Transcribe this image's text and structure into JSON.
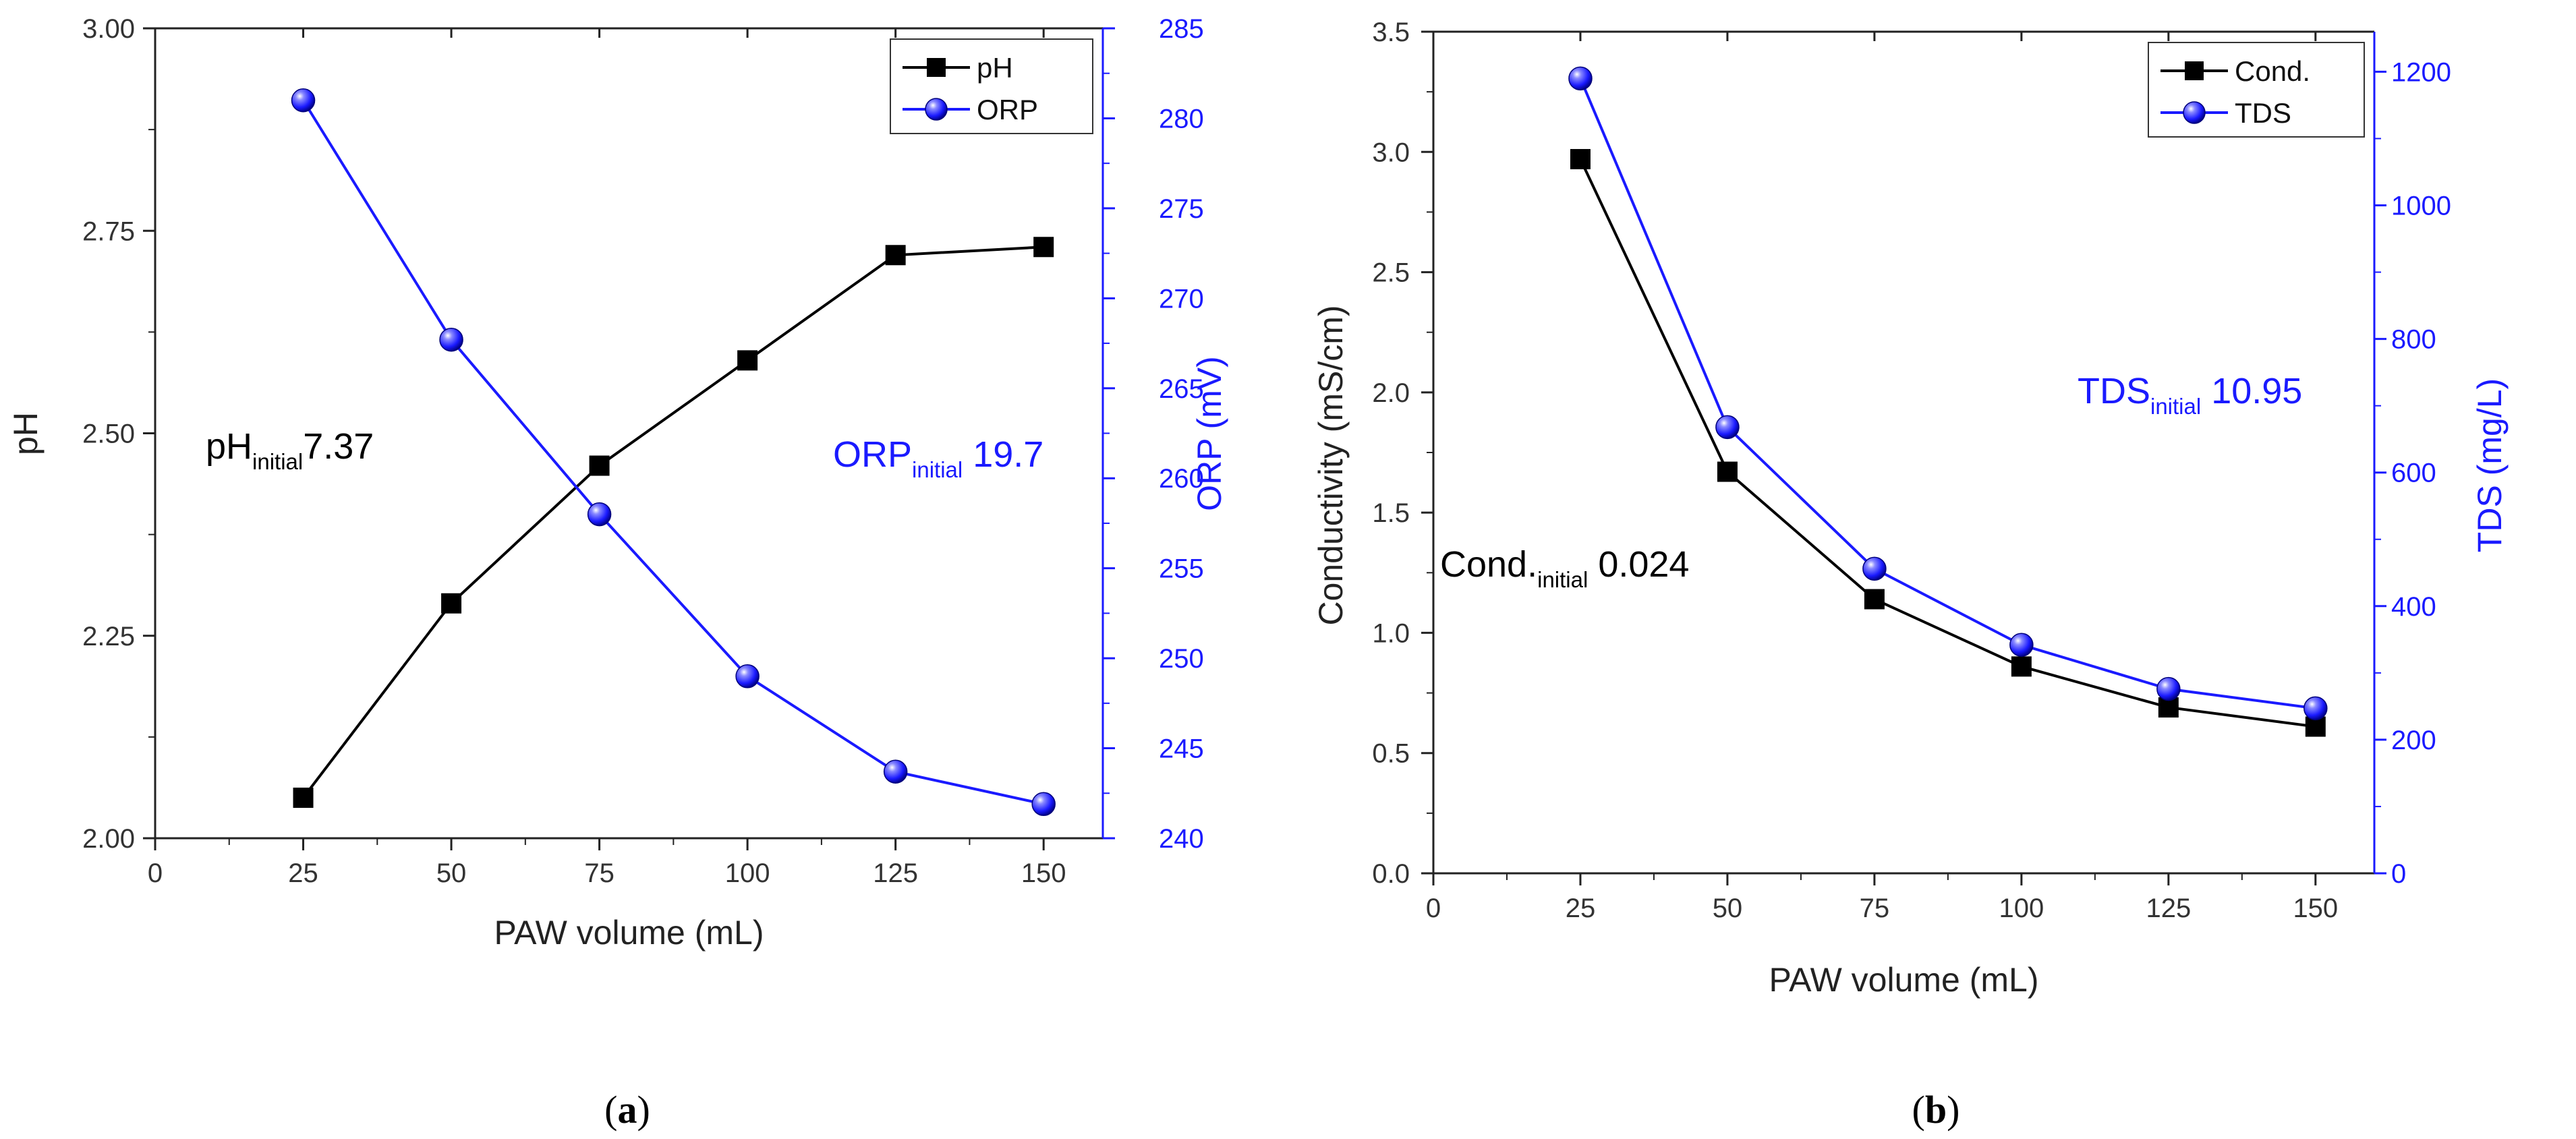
{
  "colors": {
    "black_series": "#000000",
    "blue_series": "#1a1aff",
    "axis_black": "#222222",
    "axis_blue": "#1a1aff"
  },
  "chart_data": [
    {
      "panel_label": "a",
      "type": "line",
      "xlabel": "PAW volume (mL)",
      "xlim": [
        0,
        160
      ],
      "xticks": [
        0,
        25,
        50,
        75,
        100,
        125,
        150
      ],
      "ylabel_left": "pH",
      "ylim_left": [
        2.0,
        3.0
      ],
      "yticks_left": [
        2.0,
        2.25,
        2.5,
        2.75,
        3.0
      ],
      "ytick_labels_left": [
        "2.00",
        "2.25",
        "2.50",
        "2.75",
        "3.00"
      ],
      "ylabel_right": "ORP (mV)",
      "ylim_right": [
        240,
        285
      ],
      "yticks_right": [
        240,
        245,
        250,
        255,
        260,
        265,
        270,
        275,
        280,
        285
      ],
      "legend": "top-right",
      "grid": false,
      "series": [
        {
          "name": "pH",
          "axis": "left",
          "marker": "square",
          "color": "#000000",
          "x": [
            25,
            50,
            75,
            100,
            125,
            150
          ],
          "values": [
            2.05,
            2.29,
            2.46,
            2.59,
            2.72,
            2.73
          ]
        },
        {
          "name": "ORP",
          "axis": "right",
          "marker": "sphere",
          "color": "#1a1aff",
          "x": [
            25,
            50,
            75,
            100,
            125,
            150
          ],
          "values": [
            281,
            267.7,
            258,
            249,
            243.7,
            241.9
          ]
        }
      ],
      "annotations": [
        {
          "base": "pH",
          "sub": "initial",
          "value": "7.37",
          "color": "#000000"
        },
        {
          "base": "ORP",
          "sub": "initial",
          "value": " 19.7",
          "color": "#1a1aff"
        }
      ]
    },
    {
      "panel_label": "b",
      "type": "line",
      "xlabel": "PAW volume (mL)",
      "xlim": [
        0,
        160
      ],
      "xticks": [
        0,
        25,
        50,
        75,
        100,
        125,
        150
      ],
      "ylabel_left": "Conductivity (mS/cm)",
      "ylim_left": [
        0,
        3.5
      ],
      "yticks_left": [
        0.0,
        0.5,
        1.0,
        1.5,
        2.0,
        2.5,
        3.0,
        3.5
      ],
      "ytick_labels_left": [
        "0.0",
        "0.5",
        "1.0",
        "1.5",
        "2.0",
        "2.5",
        "3.0",
        "3.5"
      ],
      "ylabel_right": "TDS (mg/L)",
      "ylim_right": [
        0,
        1260
      ],
      "yticks_right": [
        0,
        200,
        400,
        600,
        800,
        1000,
        1200
      ],
      "legend": "top-right",
      "grid": false,
      "series": [
        {
          "name": "Cond.",
          "axis": "left",
          "marker": "square",
          "color": "#000000",
          "x": [
            25,
            50,
            75,
            100,
            125,
            150
          ],
          "values": [
            2.97,
            1.67,
            1.14,
            0.86,
            0.69,
            0.61
          ]
        },
        {
          "name": "TDS",
          "axis": "right",
          "marker": "sphere",
          "color": "#1a1aff",
          "x": [
            25,
            50,
            75,
            100,
            125,
            150
          ],
          "values": [
            1190,
            668,
            456,
            342,
            276,
            247
          ]
        }
      ],
      "annotations": [
        {
          "base": "Cond.",
          "sub": "initial",
          "value": " 0.024",
          "color": "#000000"
        },
        {
          "base": "TDS",
          "sub": "initial",
          "value": " 10.95",
          "color": "#1a1aff"
        }
      ]
    }
  ]
}
